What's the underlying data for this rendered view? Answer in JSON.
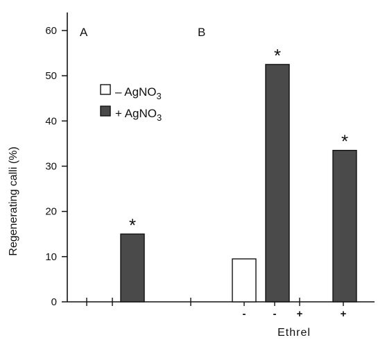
{
  "chart_data": {
    "type": "bar",
    "ylabel": "Regenerating calli (%)",
    "xlabel": "Ethrel",
    "ylim": [
      0,
      60
    ],
    "yticks": [
      0,
      10,
      20,
      30,
      40,
      50,
      60
    ],
    "panels": [
      "A",
      "B"
    ],
    "legend": {
      "minus": "- AgNO3",
      "plus": "+ AgNO3"
    },
    "bars": [
      {
        "panel": "A",
        "ethrel": "",
        "agno3": "+",
        "value": 15,
        "significant": true
      },
      {
        "panel": "B",
        "ethrel": "-",
        "agno3": "-",
        "value": 9.5,
        "significant": false
      },
      {
        "panel": "B",
        "ethrel": "-",
        "agno3": "+",
        "value": 52.5,
        "significant": true
      },
      {
        "panel": "B",
        "ethrel": "+",
        "agno3": "+",
        "value": 33.5,
        "significant": true
      }
    ],
    "x_tick_labels": [
      "-",
      "-",
      "+",
      "+"
    ],
    "significance_marker": "*",
    "colors": {
      "plus": "#4a4a4a",
      "minus": "#ffffff",
      "stroke": "#111111"
    }
  }
}
